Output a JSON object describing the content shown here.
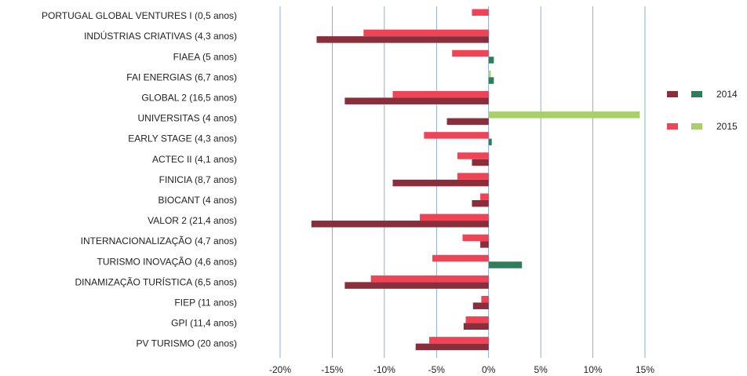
{
  "chart_data": {
    "type": "bar",
    "orientation": "horizontal",
    "categories": [
      "PORTUGAL GLOBAL VENTURES I (0,5 anos)",
      "INDÚSTRIAS CRIATIVAS (4,3 anos)",
      "FIAEA (5 anos)",
      "FAI ENERGIAS (6,7 anos)",
      "GLOBAL 2 (16,5 anos)",
      "UNIVERSITAS (4 anos)",
      "EARLY STAGE (4,3 anos)",
      "ACTEC II (4,1 anos)",
      "FINICIA (8,7 anos)",
      "BIOCANT (4 anos)",
      "VALOR 2 (21,4 anos)",
      "INTERNACIONALIZAÇÃO (4,7 anos)",
      "TURISMO INOVAÇÃO (4,6 anos)",
      "DINAMIZAÇÃO TURÍSTICA (6,5 anos)",
      "FIEP (11 anos)",
      "GPI (11,4 anos)",
      "PV TURISMO (20 anos)"
    ],
    "series": [
      {
        "name": "2014",
        "color_negative": "#8b2e3c",
        "color_positive": "#2e7d5b",
        "values": [
          null,
          -16.5,
          0.5,
          0.5,
          -13.8,
          -4.0,
          0.3,
          -1.6,
          -9.2,
          -1.6,
          -17.0,
          -0.8,
          3.2,
          -13.8,
          -1.5,
          -2.4,
          -7.0
        ]
      },
      {
        "name": "2015",
        "color_negative": "#ee4455",
        "color_positive": "#a8d06a",
        "values": [
          -1.6,
          -12.0,
          -3.5,
          0.2,
          -9.2,
          14.5,
          -6.2,
          -3.0,
          -3.0,
          -0.8,
          -6.6,
          -2.5,
          -5.4,
          -11.3,
          -0.7,
          -2.2,
          -5.7
        ]
      }
    ],
    "x_ticks": [
      "-20%",
      "-15%",
      "-10%",
      "-5%",
      "0%",
      "5%",
      "10%",
      "15%"
    ],
    "xlim": [
      -20,
      15
    ],
    "grid": true,
    "legend_position": "right"
  }
}
